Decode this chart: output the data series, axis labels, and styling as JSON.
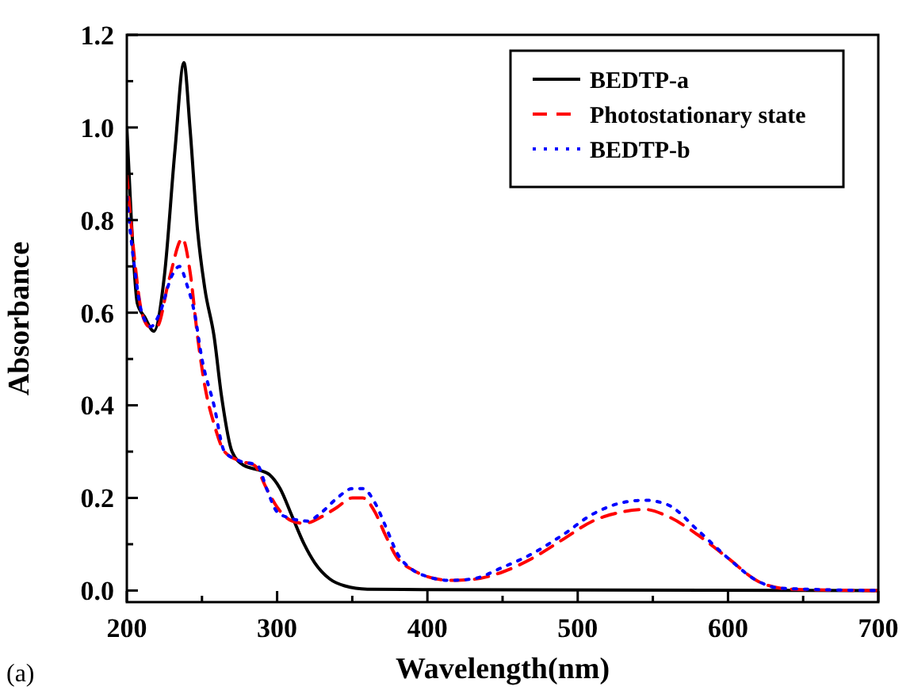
{
  "chart_data": {
    "type": "line",
    "xlabel": "Wavelength(nm)",
    "ylabel": "Absorbance",
    "annotations": [
      "(a)"
    ],
    "xlim": [
      200,
      700
    ],
    "ylim": [
      -0.025,
      1.2
    ],
    "xticks": [
      200,
      {
        "value": 250,
        "label": null
      },
      300,
      {
        "value": 350,
        "label": null
      },
      400,
      {
        "value": 450,
        "label": null
      },
      500,
      {
        "value": 550,
        "label": null
      },
      600,
      {
        "value": 650,
        "label": null
      },
      700
    ],
    "yticks": [
      {
        "value": 0,
        "label": "0.0"
      },
      {
        "value": 0.1,
        "label": null
      },
      {
        "value": 0.2,
        "label": "0.2"
      },
      {
        "value": 0.3,
        "label": null
      },
      {
        "value": 0.4,
        "label": "0.4"
      },
      {
        "value": 0.5,
        "label": null
      },
      {
        "value": 0.6,
        "label": "0.6"
      },
      {
        "value": 0.7,
        "label": null
      },
      {
        "value": 0.8,
        "label": "0.8"
      },
      {
        "value": 0.9,
        "label": null
      },
      {
        "value": 1.0,
        "label": "1.0"
      },
      {
        "value": 1.1,
        "label": null
      },
      {
        "value": 1.2,
        "label": "1.2"
      }
    ],
    "grid": false,
    "legend": "top right",
    "marker": "none",
    "series": [
      {
        "name": "BEDTP-a",
        "color": "#000000",
        "line_style": "solid",
        "x": [
          200,
          203,
          207,
          212,
          218,
          225,
          232,
          238,
          242,
          247,
          252,
          258,
          263,
          270,
          278,
          288,
          295,
          302,
          310,
          318,
          325,
          335,
          345,
          360,
          400,
          700
        ],
        "values": [
          1.0,
          0.8,
          0.62,
          0.59,
          0.56,
          0.68,
          0.95,
          1.14,
          1.0,
          0.78,
          0.65,
          0.55,
          0.42,
          0.3,
          0.27,
          0.26,
          0.25,
          0.22,
          0.16,
          0.1,
          0.06,
          0.025,
          0.01,
          0.003,
          0.002,
          0
        ]
      },
      {
        "name": "Photostationary state",
        "color": "#ff0000",
        "line_style": "dashed",
        "x": [
          200,
          205,
          210,
          215,
          220,
          228,
          237,
          242,
          247,
          252,
          258,
          265,
          275,
          285,
          293,
          300,
          310,
          318,
          330,
          340,
          350,
          357,
          365,
          372,
          380,
          390,
          400,
          415,
          430,
          450,
          470,
          490,
          510,
          530,
          545,
          560,
          580,
          600,
          620,
          635,
          650,
          700
        ],
        "values": [
          0.9,
          0.72,
          0.6,
          0.57,
          0.57,
          0.67,
          0.76,
          0.69,
          0.55,
          0.44,
          0.36,
          0.3,
          0.28,
          0.27,
          0.22,
          0.18,
          0.15,
          0.145,
          0.16,
          0.18,
          0.2,
          0.2,
          0.17,
          0.12,
          0.07,
          0.045,
          0.03,
          0.022,
          0.024,
          0.04,
          0.07,
          0.11,
          0.15,
          0.17,
          0.175,
          0.16,
          0.12,
          0.07,
          0.02,
          0.005,
          0.002,
          0
        ]
      },
      {
        "name": "BEDTP-b",
        "color": "#0000ff",
        "line_style": "dotted",
        "x": [
          200,
          205,
          210,
          216,
          222,
          230,
          235,
          240,
          245,
          250,
          258,
          265,
          275,
          287,
          293,
          300,
          310,
          320,
          330,
          340,
          350,
          357,
          365,
          372,
          380,
          390,
          400,
          415,
          430,
          450,
          470,
          490,
          510,
          530,
          545,
          560,
          580,
          600,
          620,
          635,
          700
        ],
        "values": [
          0.85,
          0.7,
          0.6,
          0.57,
          0.6,
          0.68,
          0.7,
          0.66,
          0.6,
          0.5,
          0.4,
          0.3,
          0.28,
          0.27,
          0.22,
          0.17,
          0.155,
          0.15,
          0.17,
          0.2,
          0.22,
          0.22,
          0.19,
          0.14,
          0.08,
          0.045,
          0.03,
          0.022,
          0.025,
          0.05,
          0.08,
          0.12,
          0.165,
          0.19,
          0.195,
          0.185,
          0.13,
          0.07,
          0.02,
          0.005,
          0
        ]
      }
    ]
  }
}
